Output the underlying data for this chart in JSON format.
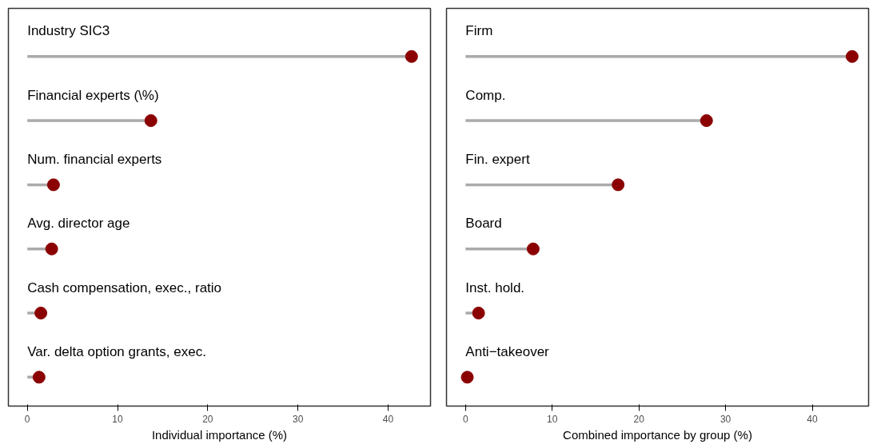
{
  "chart_data": [
    {
      "type": "lollipop",
      "orientation": "horizontal",
      "xlabel": "Individual importance (%)",
      "categories": [
        "Industry SIC3",
        "Financial experts (\\%)",
        "Num. financial experts",
        "Avg. director age",
        "Cash compensation, exec., ratio",
        "Var. delta option grants, exec."
      ],
      "series": [
        {
          "color": "#8b0000",
          "values": [
            42.6,
            13.7,
            2.9,
            2.7,
            1.5,
            1.3
          ]
        }
      ],
      "xlim": [
        -2.1,
        44.7
      ],
      "xticks": [
        0,
        10,
        20,
        30,
        40
      ],
      "grid": false,
      "marker": "circle"
    },
    {
      "type": "lollipop",
      "orientation": "horizontal",
      "xlabel": "Combined importance by group (%)",
      "categories": [
        "Firm",
        "Comp.",
        "Fin. expert",
        "Board",
        "Inst. hold.",
        "Anti−takeover"
      ],
      "series": [
        {
          "color": "#8b0000",
          "values": [
            44.6,
            27.8,
            17.6,
            7.8,
            1.5,
            0.2
          ]
        }
      ],
      "xlim": [
        -2.2,
        46.5
      ],
      "xticks": [
        0,
        10,
        20,
        30,
        40
      ],
      "grid": false,
      "marker": "circle"
    }
  ]
}
